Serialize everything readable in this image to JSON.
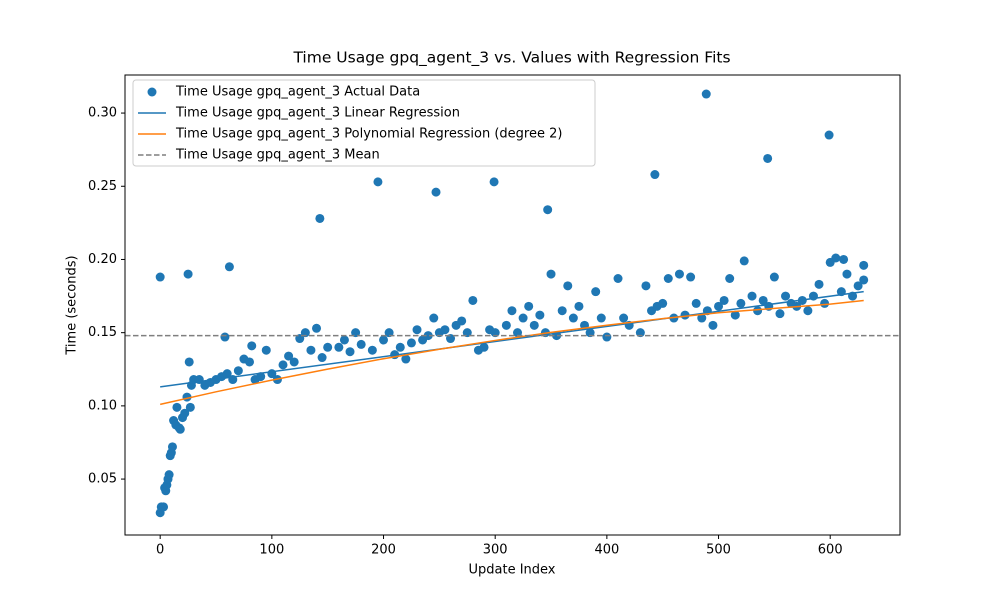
{
  "chart_data": {
    "type": "scatter",
    "title": "Time Usage gpq_agent_3 vs. Values with Regression Fits",
    "x_label": "Update Index",
    "y_label": "Time (seconds)",
    "xlim": [
      -31.5,
      662.5
    ],
    "ylim": [
      0.0118,
      0.326
    ],
    "xticks": [
      0,
      100,
      200,
      300,
      400,
      500,
      600
    ],
    "yticks": [
      0.05,
      {
        "value": 0.1,
        "label": "0.10"
      },
      0.15,
      {
        "value": 0.2,
        "label": "0.20"
      },
      0.25,
      {
        "value": 0.3,
        "label": "0.30"
      }
    ],
    "legend": "upper left",
    "series": [
      {
        "name": "Time Usage gpq_agent_3 Actual Data",
        "kind": "scatter",
        "color": "#1f77b4",
        "x": [
          0,
          0,
          1,
          3,
          4,
          5,
          6,
          7,
          8,
          9,
          10,
          11,
          12,
          14,
          15,
          17,
          18,
          20,
          22,
          24,
          25,
          26,
          27,
          28,
          30,
          35,
          40,
          45,
          50,
          55,
          58,
          60,
          62,
          65,
          70,
          75,
          80,
          82,
          85,
          90,
          95,
          100,
          105,
          110,
          115,
          120,
          125,
          130,
          135,
          140,
          143,
          145,
          150,
          160,
          165,
          170,
          175,
          180,
          190,
          195,
          200,
          205,
          210,
          215,
          220,
          225,
          230,
          235,
          240,
          245,
          247,
          250,
          255,
          260,
          265,
          270,
          275,
          280,
          285,
          290,
          295,
          299,
          300,
          310,
          315,
          320,
          325,
          330,
          335,
          340,
          345,
          347,
          350,
          355,
          360,
          365,
          370,
          375,
          380,
          385,
          390,
          395,
          400,
          410,
          415,
          420,
          430,
          435,
          440,
          443,
          445,
          450,
          455,
          460,
          465,
          470,
          475,
          480,
          485,
          489,
          490,
          495,
          500,
          505,
          510,
          515,
          520,
          523,
          530,
          535,
          540,
          544,
          545,
          550,
          555,
          560,
          565,
          570,
          575,
          580,
          585,
          590,
          595,
          599,
          600,
          605,
          610,
          612,
          615,
          620,
          625,
          630,
          630
        ],
        "values": [
          0.188,
          0.027,
          0.031,
          0.031,
          0.044,
          0.042,
          0.046,
          0.05,
          0.053,
          0.066,
          0.068,
          0.072,
          0.09,
          0.087,
          0.099,
          0.085,
          0.084,
          0.092,
          0.095,
          0.106,
          0.19,
          0.13,
          0.099,
          0.114,
          0.118,
          0.118,
          0.114,
          0.116,
          0.118,
          0.12,
          0.147,
          0.122,
          0.195,
          0.118,
          0.124,
          0.132,
          0.13,
          0.141,
          0.118,
          0.12,
          0.138,
          0.122,
          0.118,
          0.128,
          0.134,
          0.13,
          0.146,
          0.15,
          0.138,
          0.153,
          0.228,
          0.133,
          0.14,
          0.14,
          0.145,
          0.137,
          0.15,
          0.142,
          0.138,
          0.253,
          0.145,
          0.15,
          0.135,
          0.14,
          0.132,
          0.143,
          0.152,
          0.145,
          0.148,
          0.16,
          0.246,
          0.15,
          0.152,
          0.146,
          0.155,
          0.158,
          0.15,
          0.172,
          0.138,
          0.14,
          0.152,
          0.253,
          0.15,
          0.155,
          0.165,
          0.15,
          0.16,
          0.168,
          0.155,
          0.162,
          0.15,
          0.234,
          0.19,
          0.148,
          0.165,
          0.182,
          0.16,
          0.168,
          0.155,
          0.15,
          0.178,
          0.16,
          0.147,
          0.187,
          0.16,
          0.155,
          0.15,
          0.182,
          0.165,
          0.258,
          0.168,
          0.17,
          0.187,
          0.16,
          0.19,
          0.162,
          0.188,
          0.17,
          0.16,
          0.313,
          0.165,
          0.155,
          0.168,
          0.172,
          0.187,
          0.162,
          0.17,
          0.199,
          0.175,
          0.165,
          0.172,
          0.269,
          0.168,
          0.188,
          0.163,
          0.175,
          0.17,
          0.168,
          0.172,
          0.165,
          0.175,
          0.183,
          0.17,
          0.285,
          0.198,
          0.201,
          0.178,
          0.2,
          0.19,
          0.175,
          0.182,
          0.196,
          0.186
        ]
      },
      {
        "name": "Time Usage gpq_agent_3 Linear Regression",
        "kind": "line",
        "color": "#1f77b4",
        "x": [
          0,
          630
        ],
        "values": [
          0.113,
          0.178
        ]
      },
      {
        "name": "Time Usage gpq_agent_3 Polynomial Regression (degree 2)",
        "kind": "line",
        "color": "#ff7f0e",
        "x": [
          0,
          50,
          100,
          150,
          200,
          250,
          300,
          350,
          400,
          450,
          500,
          550,
          600,
          630
        ],
        "values": [
          0.101,
          0.1096,
          0.1176,
          0.1251,
          0.1322,
          0.1387,
          0.1447,
          0.1502,
          0.1551,
          0.1596,
          0.1636,
          0.1666,
          0.1695,
          0.172
        ]
      },
      {
        "name": "Time Usage gpq_agent_3 Mean",
        "kind": "hline",
        "color": "#7f7f7f",
        "values": [
          0.148
        ]
      }
    ]
  }
}
